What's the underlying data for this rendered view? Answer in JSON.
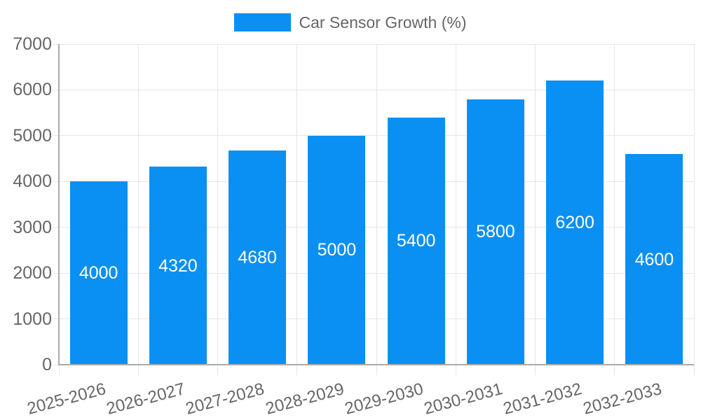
{
  "chart_data": {
    "type": "bar",
    "title": "",
    "legend_position": "top",
    "categories": [
      "2025-2026",
      "2026-2027",
      "2027-2028",
      "2028-2029",
      "2029-2030",
      "2030-2031",
      "2031-2032",
      "2032-2033"
    ],
    "series": [
      {
        "name": "Car Sensor Growth (%)",
        "values": [
          4000,
          4320,
          4680,
          5000,
          5400,
          5800,
          6200,
          4600
        ]
      }
    ],
    "bar_value_labels": [
      "4000",
      "4320",
      "4680",
      "5000",
      "5400",
      "5800",
      "6200",
      "4600"
    ],
    "xlabel": "",
    "ylabel": "",
    "ylim": [
      0,
      7000
    ],
    "ytick_step": 1000,
    "ytick_labels": [
      "0",
      "1000",
      "2000",
      "3000",
      "4000",
      "5000",
      "6000",
      "7000"
    ],
    "grid": true,
    "x_label_rotation_deg": -15,
    "colors": {
      "bar": "#0a90f2",
      "grid": "#e6e6e6",
      "axis": "#ababab",
      "tick_text": "#666666",
      "data_label": "#ffffff",
      "background": "#ffffff"
    }
  }
}
